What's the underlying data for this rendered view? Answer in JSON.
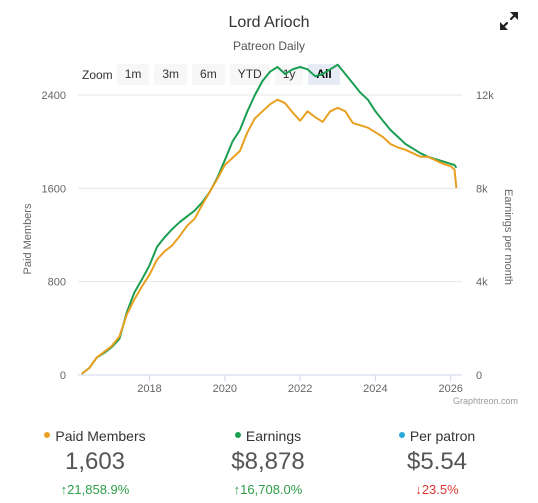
{
  "header": {
    "title": "Lord Arioch",
    "subtitle": "Patreon Daily"
  },
  "zoom": {
    "label": "Zoom",
    "buttons": [
      "1m",
      "3m",
      "6m",
      "YTD",
      "1y",
      "All"
    ],
    "active": "All"
  },
  "credit": "Graphtreon.com",
  "colors": {
    "members": "#e8a020",
    "earnings": "#1a9e52",
    "per_patron": "#2aa8d8",
    "up": "#2e9e48",
    "down": "#d93a32"
  },
  "chart_data": {
    "type": "line",
    "grid": true,
    "x_ticks": [
      "2018",
      "2020",
      "2022",
      "2024",
      "2026"
    ],
    "x_range": [
      2016.1,
      2026.3
    ],
    "y_left": {
      "label": "Paid Members",
      "range": [
        0,
        2400
      ],
      "ticks": [
        "0",
        "800",
        "1600",
        "2400"
      ]
    },
    "y_right": {
      "label": "Earnings per month",
      "range": [
        0,
        12000
      ],
      "ticks": [
        "0",
        "4k",
        "8k",
        "12k"
      ]
    },
    "series": [
      {
        "name": "Paid Members",
        "axis": "left",
        "x": [
          2016.2,
          2016.4,
          2016.6,
          2016.8,
          2017.0,
          2017.2,
          2017.4,
          2017.6,
          2017.8,
          2018.0,
          2018.2,
          2018.4,
          2018.6,
          2018.8,
          2019.0,
          2019.2,
          2019.4,
          2019.6,
          2019.8,
          2020.0,
          2020.2,
          2020.4,
          2020.6,
          2020.8,
          2021.0,
          2021.2,
          2021.4,
          2021.6,
          2021.8,
          2022.0,
          2022.2,
          2022.4,
          2022.6,
          2022.8,
          2023.0,
          2023.2,
          2023.4,
          2023.6,
          2023.8,
          2024.0,
          2024.2,
          2024.4,
          2024.6,
          2024.8,
          2025.0,
          2025.2,
          2025.4,
          2025.6,
          2025.8,
          2026.0,
          2026.1,
          2026.15
        ],
        "values": [
          10,
          60,
          150,
          200,
          250,
          330,
          520,
          650,
          760,
          860,
          990,
          1060,
          1110,
          1190,
          1280,
          1340,
          1460,
          1570,
          1680,
          1800,
          1860,
          1920,
          2080,
          2200,
          2260,
          2320,
          2360,
          2330,
          2250,
          2180,
          2260,
          2210,
          2170,
          2260,
          2290,
          2260,
          2160,
          2140,
          2120,
          2080,
          2040,
          1980,
          1950,
          1930,
          1900,
          1870,
          1870,
          1840,
          1810,
          1790,
          1760,
          1603
        ]
      },
      {
        "name": "Earnings",
        "axis": "right",
        "x": [
          2016.2,
          2016.4,
          2016.6,
          2016.8,
          2017.0,
          2017.2,
          2017.4,
          2017.6,
          2017.8,
          2018.0,
          2018.2,
          2018.4,
          2018.6,
          2018.8,
          2019.0,
          2019.2,
          2019.4,
          2019.6,
          2019.8,
          2020.0,
          2020.2,
          2020.4,
          2020.6,
          2020.8,
          2021.0,
          2021.2,
          2021.4,
          2021.6,
          2021.8,
          2022.0,
          2022.2,
          2022.4,
          2022.6,
          2022.8,
          2023.0,
          2023.2,
          2023.4,
          2023.6,
          2023.8,
          2024.0,
          2024.2,
          2024.4,
          2024.6,
          2024.8,
          2025.0,
          2025.2,
          2025.4,
          2025.6,
          2025.8,
          2026.0,
          2026.1,
          2026.15
        ],
        "values": [
          50,
          300,
          750,
          950,
          1200,
          1550,
          2700,
          3550,
          4100,
          4700,
          5500,
          5900,
          6250,
          6550,
          6800,
          7050,
          7400,
          7850,
          8450,
          9200,
          10000,
          10500,
          11300,
          12000,
          12600,
          13000,
          13200,
          12900,
          13100,
          13200,
          13100,
          12800,
          12900,
          13100,
          13300,
          12900,
          12500,
          12100,
          11800,
          11300,
          10900,
          10500,
          10200,
          9900,
          9700,
          9500,
          9350,
          9250,
          9150,
          9050,
          9000,
          8878
        ]
      }
    ]
  },
  "stats": [
    {
      "label": "Paid Members",
      "value": "1,603",
      "change": "21,858.9%",
      "direction": "up",
      "color": "#e8a020"
    },
    {
      "label": "Earnings",
      "value": "$8,878",
      "change": "16,708.0%",
      "direction": "up",
      "color": "#1a9e52"
    },
    {
      "label": "Per patron",
      "value": "$5.54",
      "change": "23.5%",
      "direction": "down",
      "color": "#2aa8d8"
    }
  ]
}
